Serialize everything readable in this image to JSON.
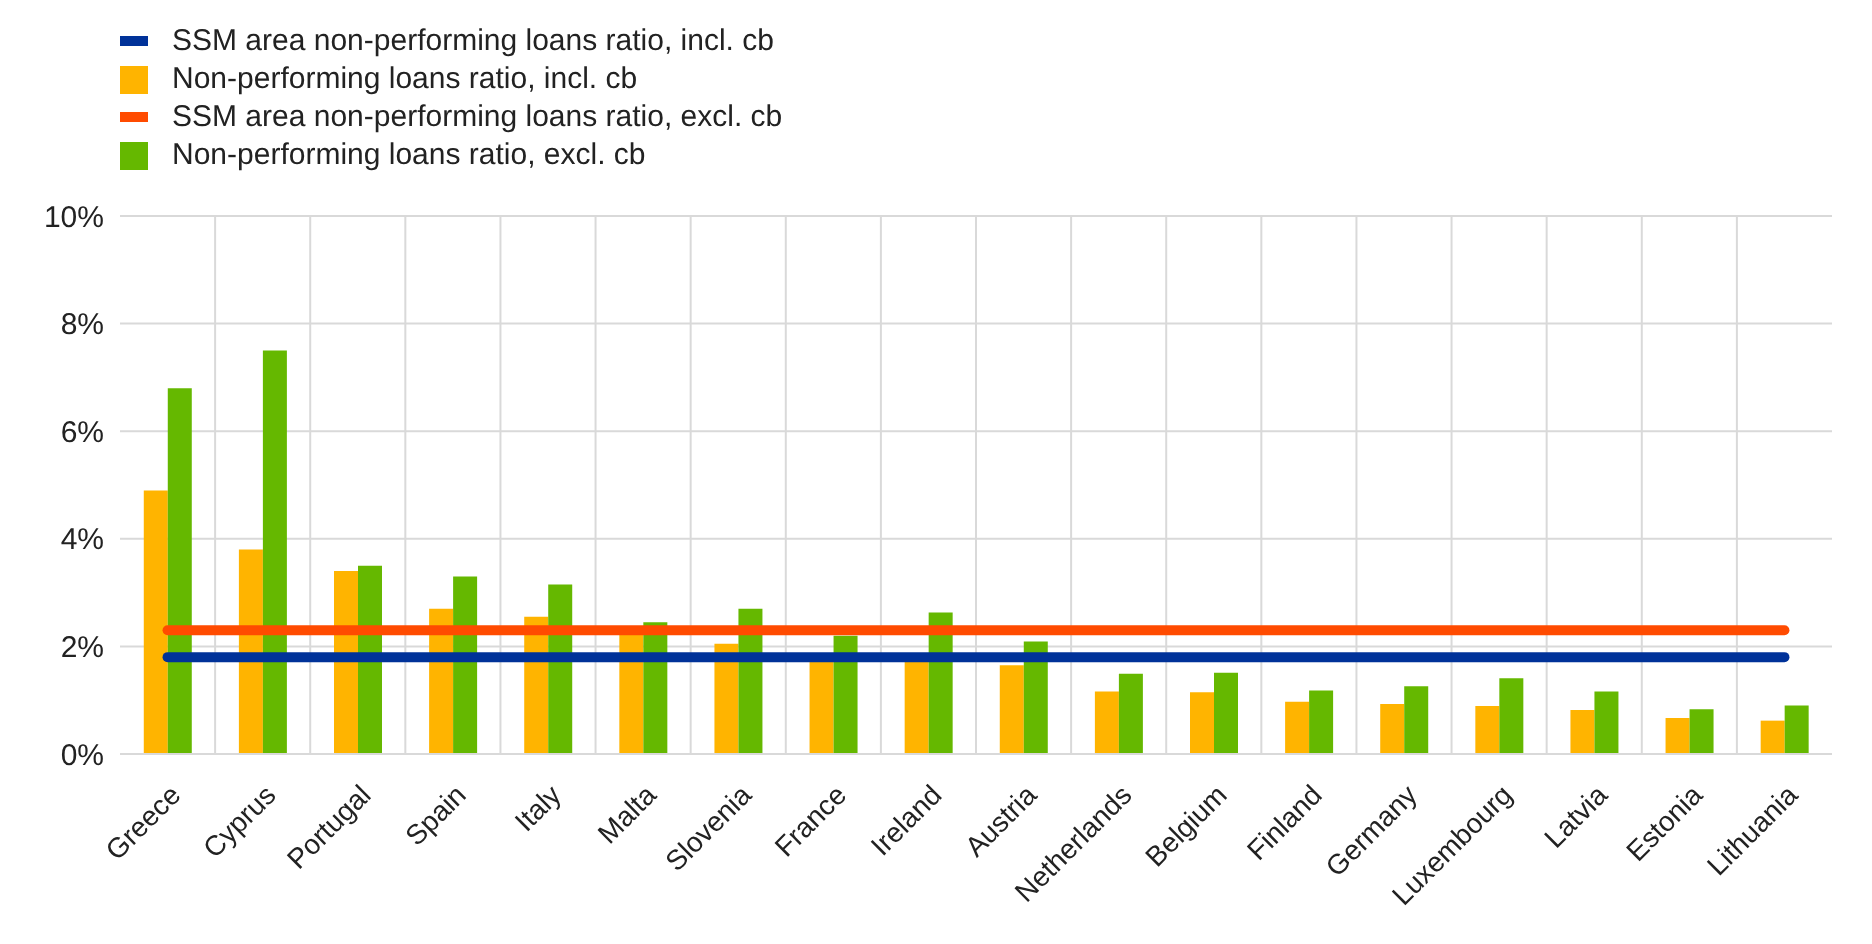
{
  "chart_data": {
    "type": "bar",
    "categories": [
      "Greece",
      "Cyprus",
      "Portugal",
      "Spain",
      "Italy",
      "Malta",
      "Slovenia",
      "France",
      "Ireland",
      "Austria",
      "Netherlands",
      "Belgium",
      "Finland",
      "Germany",
      "Luxembourg",
      "Latvia",
      "Estonia",
      "Lithuania"
    ],
    "series": [
      {
        "name": "SSM area non-performing loans ratio, incl. cb",
        "type": "line",
        "color": "#003299",
        "values": [
          1.8,
          1.8,
          1.8,
          1.8,
          1.8,
          1.8,
          1.8,
          1.8,
          1.8,
          1.8,
          1.8,
          1.8,
          1.8,
          1.8,
          1.8,
          1.8,
          1.8,
          1.8
        ]
      },
      {
        "name": "Non-performing loans ratio, incl. cb",
        "color": "#ffb400",
        "values": [
          4.9,
          3.8,
          3.4,
          2.7,
          2.55,
          2.3,
          2.05,
          1.8,
          1.75,
          1.65,
          1.16,
          1.15,
          0.97,
          0.93,
          0.89,
          0.82,
          0.67,
          0.62
        ]
      },
      {
        "name": "SSM area non-performing loans ratio, excl. cb",
        "type": "line",
        "color": "#ff4b00",
        "values": [
          2.3,
          2.3,
          2.3,
          2.3,
          2.3,
          2.3,
          2.3,
          2.3,
          2.3,
          2.3,
          2.3,
          2.3,
          2.3,
          2.3,
          2.3,
          2.3,
          2.3,
          2.3
        ]
      },
      {
        "name": "Non-performing loans ratio, excl. cb",
        "color": "#65b800",
        "values": [
          6.8,
          7.5,
          3.5,
          3.3,
          3.15,
          2.45,
          2.7,
          2.2,
          2.63,
          2.09,
          1.49,
          1.51,
          1.18,
          1.26,
          1.41,
          1.16,
          0.83,
          0.9
        ]
      }
    ],
    "ylim": [
      0,
      10
    ],
    "yticks": [
      {
        "value": 0,
        "label": "0%"
      },
      {
        "value": 2,
        "label": "2%"
      },
      {
        "value": 4,
        "label": "4%"
      },
      {
        "value": 6,
        "label": "6%"
      },
      {
        "value": 8,
        "label": "8%"
      },
      {
        "value": 10,
        "label": "10%"
      }
    ],
    "grid": true,
    "legend": "top left",
    "marker": "none",
    "line_style": "solid"
  }
}
